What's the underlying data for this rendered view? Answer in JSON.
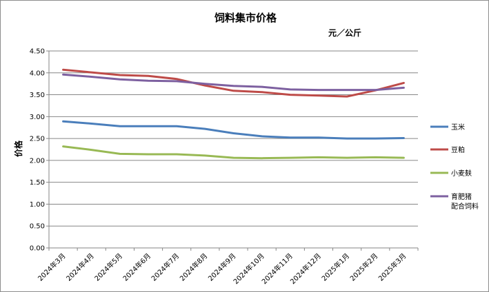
{
  "chart_data": {
    "type": "line",
    "title": "饲料集市价格",
    "unit": "元／公斤",
    "ylabel": "价格",
    "xlabel": "",
    "ylim": [
      0,
      4.5
    ],
    "ytick_step": 0.5,
    "ytick_labels": [
      "0.00",
      "0.50",
      "1.00",
      "1.50",
      "2.00",
      "2.50",
      "3.00",
      "3.50",
      "4.00",
      "4.50"
    ],
    "grid": "horizontal",
    "legend_placement": "right",
    "categories": [
      "2024年3月",
      "2024年4月",
      "2024年5月",
      "2024年6月",
      "2024年7月",
      "2024年8月",
      "2024年9月",
      "2024年10月",
      "2024年11月",
      "2024年12月",
      "2025年1月",
      "2025年2月",
      "2025年3月"
    ],
    "series": [
      {
        "name": "玉米",
        "color": "#4a7ebb",
        "values": [
          2.89,
          2.84,
          2.78,
          2.78,
          2.78,
          2.72,
          2.62,
          2.55,
          2.52,
          2.52,
          2.5,
          2.5,
          2.51
        ]
      },
      {
        "name": "豆粕",
        "color": "#be4b48",
        "values": [
          4.07,
          4.01,
          3.95,
          3.93,
          3.86,
          3.71,
          3.59,
          3.56,
          3.5,
          3.48,
          3.46,
          3.6,
          3.77
        ]
      },
      {
        "name": "小麦麸",
        "color": "#98b954",
        "values": [
          2.32,
          2.24,
          2.15,
          2.14,
          2.14,
          2.11,
          2.06,
          2.05,
          2.06,
          2.07,
          2.06,
          2.07,
          2.06
        ]
      },
      {
        "name": "育肥猪\n配合饲料",
        "lines": [
          "育肥猪",
          "配合饲料"
        ],
        "color": "#7d60a0",
        "values": [
          3.96,
          3.91,
          3.85,
          3.82,
          3.81,
          3.75,
          3.7,
          3.68,
          3.62,
          3.61,
          3.61,
          3.61,
          3.66
        ]
      }
    ]
  }
}
